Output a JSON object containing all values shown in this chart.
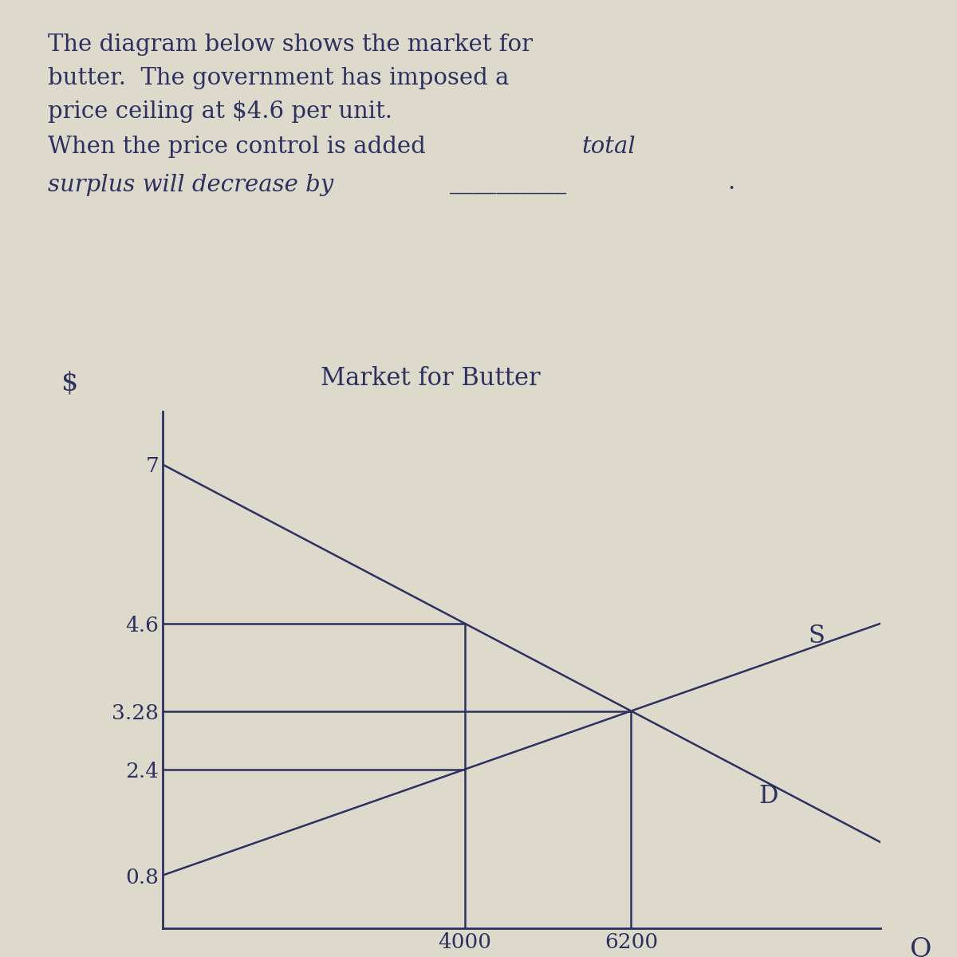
{
  "chart_title": "Market for Butter",
  "y_label": "$",
  "x_label": "Q",
  "price_ticks": [
    0.8,
    2.4,
    3.28,
    4.6,
    7
  ],
  "qty_ticks": [
    4000,
    6200
  ],
  "supply_intercept": 0.8,
  "supply_slope": 0.0004,
  "demand_intercept": 7.0,
  "demand_slope": -0.0006,
  "price_ceiling": 4.6,
  "eq_qty": 6200,
  "eq_price": 3.28,
  "ceiling_qty": 4000,
  "ceiling_supply_price": 2.4,
  "x_max": 9500,
  "y_max": 7.8,
  "bg_color": "#ddd9cb",
  "line_color": "#2c3161",
  "text_color": "#2c3161",
  "font_size_body": 21,
  "font_size_chart_title": 22,
  "font_size_tick": 19,
  "font_size_label": 22
}
